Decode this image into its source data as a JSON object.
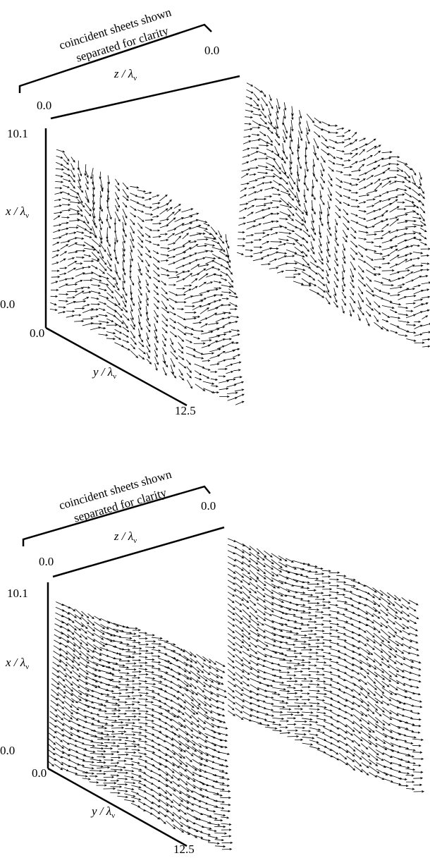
{
  "panels": [
    {
      "note": [
        "coincident sheets shown",
        "separated for clarity"
      ],
      "z_axis": {
        "label": "z / λ",
        "sub": "ν",
        "start": "0.0",
        "end": "0.0"
      },
      "x_axis": {
        "label": "x / λ",
        "sub": "ν",
        "min": "0.0",
        "max": "10.1"
      },
      "y_axis": {
        "label": "y / λ",
        "sub": "ν",
        "min": "0.0",
        "max": "12.5"
      }
    },
    {
      "note": [
        "coincident sheets shown",
        "separated for clarity"
      ],
      "z_axis": {
        "label": "z / λ",
        "sub": "ν",
        "start": "0.0",
        "end": "0.0"
      },
      "x_axis": {
        "label": "x / λ",
        "sub": "ν",
        "min": "0.0",
        "max": "10.1"
      },
      "y_axis": {
        "label": "y / λ",
        "sub": "ν",
        "min": "0.0",
        "max": "12.5"
      }
    }
  ]
}
